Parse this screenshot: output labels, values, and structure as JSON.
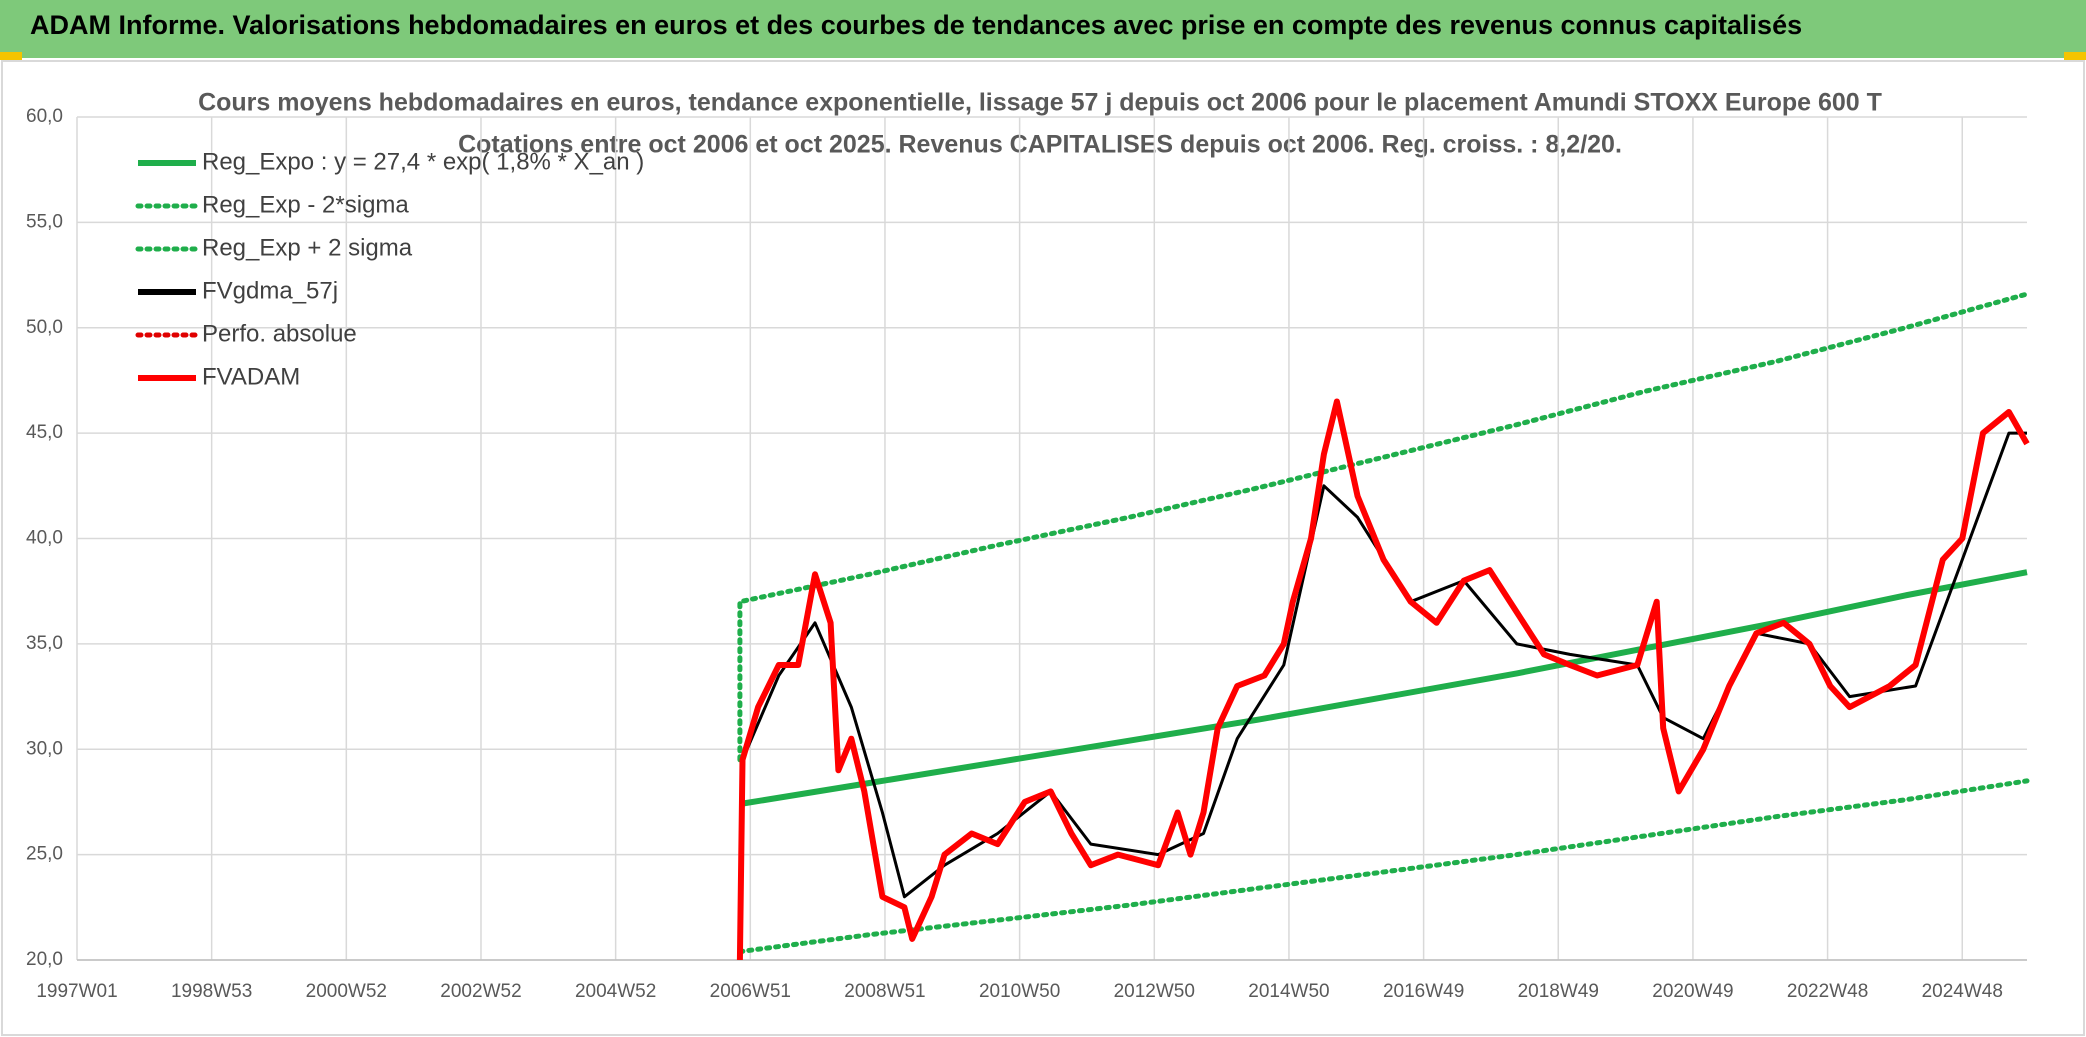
{
  "header": {
    "title": "ADAM Informe. Valorisations hebdomadaires en euros et des courbes de tendances avec prise en compte des revenus connus capitalisés"
  },
  "chart_data": {
    "type": "line",
    "title": "Cours moyens hebdomadaires en euros, tendance exponentielle, lissage 57 j depuis oct 2006 pour le placement Amundi STOXX Europe 600 T",
    "subtitle": "Cotations entre oct 2006 et oct 2025. Revenus CAPITALISES depuis oct 2006. Reg. croiss. : 8,2/20.",
    "xlim": [
      0,
      1506
    ],
    "xticks": [
      {
        "value": 0,
        "label": "1997W01"
      },
      {
        "value": 104,
        "label": "1998W53"
      },
      {
        "value": 208,
        "label": "2000W52"
      },
      {
        "value": 312,
        "label": "2002W52"
      },
      {
        "value": 416,
        "label": "2004W52"
      },
      {
        "value": 520,
        "label": "2006W51"
      },
      {
        "value": 624,
        "label": "2008W51"
      },
      {
        "value": 728,
        "label": "2010W50"
      },
      {
        "value": 832,
        "label": "2012W50"
      },
      {
        "value": 936,
        "label": "2014W50"
      },
      {
        "value": 1040,
        "label": "2016W49"
      },
      {
        "value": 1144,
        "label": "2018W49"
      },
      {
        "value": 1248,
        "label": "2020W49"
      },
      {
        "value": 1352,
        "label": "2022W48"
      },
      {
        "value": 1456,
        "label": "2024W48"
      }
    ],
    "ylim": [
      20,
      60
    ],
    "yticks": [
      {
        "value": 20,
        "label": "20,0"
      },
      {
        "value": 25,
        "label": "25,0"
      },
      {
        "value": 30,
        "label": "30,0"
      },
      {
        "value": 35,
        "label": "35,0"
      },
      {
        "value": 40,
        "label": "40,0"
      },
      {
        "value": 45,
        "label": "45,0"
      },
      {
        "value": 50,
        "label": "50,0"
      },
      {
        "value": 55,
        "label": "55,0"
      },
      {
        "value": 60,
        "label": "60,0"
      }
    ],
    "grid": true,
    "series": [
      {
        "name": "Reg_Expo : y = 27,4 * exp( 1,8% *  X_an )",
        "color": "#1fae4b",
        "style": "solid",
        "x": [
          512,
          612,
          712,
          812,
          912,
          1012,
          1112,
          1212,
          1312,
          1412,
          1506
        ],
        "values": [
          27.4,
          28.4,
          29.4,
          30.4,
          31.4,
          32.5,
          33.6,
          34.8,
          36.0,
          37.3,
          38.4
        ]
      },
      {
        "name": "Reg_Exp - 2*sigma",
        "color": "#1fae4b",
        "style": "dotted",
        "x": [
          512,
          612,
          712,
          812,
          912,
          1012,
          1112,
          1212,
          1312,
          1412,
          1506
        ],
        "values": [
          20.4,
          21.2,
          21.9,
          22.6,
          23.4,
          24.2,
          25.0,
          25.9,
          26.8,
          27.6,
          28.5
        ]
      },
      {
        "name": "Reg_Exp + 2 sigma",
        "color": "#1fae4b",
        "style": "dotted",
        "x": [
          512,
          512,
          612,
          712,
          812,
          912,
          1012,
          1112,
          1212,
          1312,
          1412,
          1506
        ],
        "values": [
          29.5,
          37.0,
          38.3,
          39.7,
          41.0,
          42.4,
          43.9,
          45.4,
          47.0,
          48.4,
          50.0,
          51.6
        ]
      },
      {
        "name": "FVgdma_57j",
        "color": "#000000",
        "style": "solid",
        "x": [
          514,
          542,
          570,
          598,
          622,
          639,
          670,
          711,
          752,
          783,
          835,
          870,
          896,
          932,
          963,
          989,
          1030,
          1071,
          1112,
          1153,
          1205,
          1225,
          1256,
          1297,
          1338,
          1369,
          1420,
          1456,
          1492,
          1506
        ],
        "values": [
          29.5,
          33.5,
          36.0,
          32.0,
          27.0,
          23.0,
          24.5,
          26.0,
          28.0,
          25.5,
          25.0,
          26.0,
          30.5,
          34.0,
          42.5,
          41.0,
          37.0,
          38.0,
          35.0,
          34.5,
          34.0,
          31.5,
          30.5,
          35.5,
          35.0,
          32.5,
          33.0,
          39.0,
          45.0,
          45.0
        ]
      },
      {
        "name": "Perfo. absolue",
        "color": "#e00000",
        "style": "dotted",
        "x": [],
        "values": []
      },
      {
        "name": "FVADAM",
        "color": "#ff0000",
        "style": "solid",
        "x": [
          512,
          514,
          526,
          542,
          557,
          570,
          582,
          588,
          598,
          608,
          622,
          639,
          645,
          660,
          670,
          691,
          711,
          732,
          752,
          768,
          783,
          804,
          835,
          850,
          860,
          870,
          881,
          896,
          917,
          932,
          939,
          953,
          963,
          973,
          989,
          1009,
          1030,
          1050,
          1071,
          1091,
          1112,
          1133,
          1153,
          1174,
          1205,
          1220,
          1225,
          1237,
          1256,
          1276,
          1297,
          1318,
          1338,
          1354,
          1369,
          1400,
          1420,
          1441,
          1456,
          1472,
          1492,
          1506
        ],
        "values": [
          20.0,
          29.5,
          32.0,
          34.0,
          34.0,
          38.3,
          36.0,
          29.0,
          30.5,
          28.0,
          23.0,
          22.5,
          21.0,
          23.0,
          25.0,
          26.0,
          25.5,
          27.5,
          28.0,
          26.0,
          24.5,
          25.0,
          24.5,
          27.0,
          25.0,
          27.0,
          31.0,
          33.0,
          33.5,
          35.0,
          37.0,
          40.0,
          44.0,
          46.5,
          42.0,
          39.0,
          37.0,
          36.0,
          38.0,
          38.5,
          36.5,
          34.5,
          34.0,
          33.5,
          34.0,
          37.0,
          31.0,
          28.0,
          30.0,
          33.0,
          35.5,
          36.0,
          35.0,
          33.0,
          32.0,
          33.0,
          34.0,
          39.0,
          40.0,
          45.0,
          46.0,
          44.5
        ]
      }
    ]
  }
}
